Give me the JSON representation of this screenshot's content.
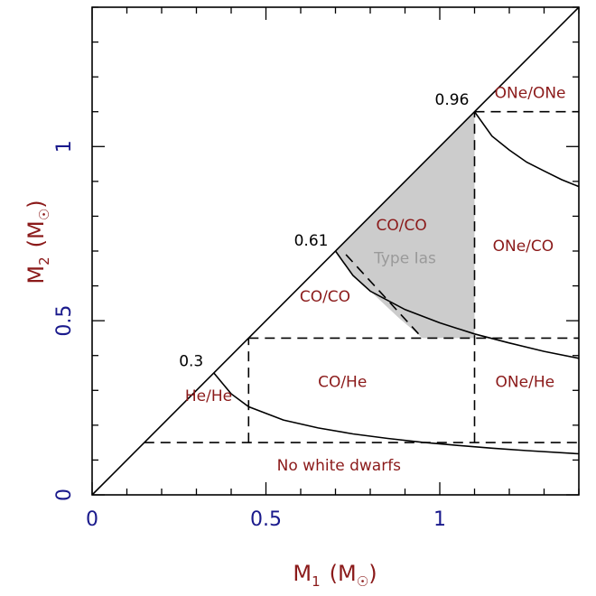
{
  "chart_data": {
    "type": "line",
    "title": "",
    "xlabel": {
      "main": "M",
      "sub": "1",
      "unit_open": "(M",
      "unit_close": ")"
    },
    "ylabel": {
      "main": "M",
      "sub": "2",
      "unit_open": "(M",
      "unit_close": ")"
    },
    "xlim": [
      0,
      1.4
    ],
    "ylim": [
      0,
      1.4
    ],
    "x_ticks": [
      {
        "value": 0,
        "label": "0"
      },
      {
        "value": 0.5,
        "label": "0.5"
      },
      {
        "value": 1,
        "label": "1"
      }
    ],
    "y_ticks": [
      {
        "value": 0,
        "label": "0"
      },
      {
        "value": 0.5,
        "label": "0.5"
      },
      {
        "value": 1,
        "label": "1"
      }
    ],
    "diagonal": [
      [
        0,
        0
      ],
      [
        1.4,
        1.4
      ]
    ],
    "boundary_curves": [
      {
        "name": "boundary-0.3",
        "points": [
          [
            0.35,
            0.35
          ],
          [
            0.4,
            0.29
          ],
          [
            0.45,
            0.253
          ],
          [
            0.55,
            0.215
          ],
          [
            0.65,
            0.192
          ],
          [
            0.75,
            0.175
          ],
          [
            0.85,
            0.162
          ],
          [
            0.95,
            0.151
          ],
          [
            1.05,
            0.142
          ],
          [
            1.15,
            0.134
          ],
          [
            1.25,
            0.127
          ],
          [
            1.4,
            0.118
          ]
        ]
      },
      {
        "name": "boundary-0.61",
        "points": [
          [
            0.7,
            0.7
          ],
          [
            0.75,
            0.63
          ],
          [
            0.8,
            0.585
          ],
          [
            0.9,
            0.532
          ],
          [
            1.0,
            0.494
          ],
          [
            1.1,
            0.462
          ],
          [
            1.2,
            0.436
          ],
          [
            1.3,
            0.412
          ],
          [
            1.4,
            0.392
          ]
        ]
      },
      {
        "name": "boundary-0.96",
        "points": [
          [
            1.1,
            1.1
          ],
          [
            1.15,
            1.03
          ],
          [
            1.2,
            0.99
          ],
          [
            1.25,
            0.955
          ],
          [
            1.3,
            0.93
          ],
          [
            1.35,
            0.905
          ],
          [
            1.4,
            0.885
          ]
        ]
      }
    ],
    "dashed_lines": [
      {
        "name": "he-limit-horizontal",
        "points": [
          [
            0.15,
            0.15
          ],
          [
            1.4,
            0.15
          ]
        ]
      },
      {
        "name": "he-limit-vertical",
        "points": [
          [
            0.45,
            0.15
          ],
          [
            0.45,
            0.45
          ]
        ]
      },
      {
        "name": "co-limit-horizontal",
        "points": [
          [
            0.45,
            0.45
          ],
          [
            1.4,
            0.45
          ]
        ]
      },
      {
        "name": "one-limit-vertical",
        "points": [
          [
            1.1,
            0.15
          ],
          [
            1.1,
            1.1
          ]
        ]
      },
      {
        "name": "one-limit-horizontal",
        "points": [
          [
            1.1,
            1.1
          ],
          [
            1.4,
            1.1
          ]
        ]
      },
      {
        "name": "type-ia-diagonal",
        "points": [
          [
            0.73,
            0.69
          ],
          [
            0.95,
            0.45
          ]
        ]
      }
    ],
    "shaded_region": {
      "name": "type-ias-region",
      "color": "#cccccc",
      "points": [
        [
          0.7,
          0.7
        ],
        [
          1.1,
          1.1
        ],
        [
          1.1,
          0.45
        ],
        [
          0.95,
          0.45
        ],
        [
          0.88,
          0.51
        ],
        [
          0.8,
          0.585
        ],
        [
          0.75,
          0.63
        ]
      ]
    },
    "region_labels": [
      {
        "name": "label-he-he",
        "text": "He/He",
        "x": 0.335,
        "y": 0.27
      },
      {
        "name": "label-co-he",
        "text": "CO/He",
        "x": 0.72,
        "y": 0.31
      },
      {
        "name": "label-co-co-lower",
        "text": "CO/CO",
        "x": 0.67,
        "y": 0.555
      },
      {
        "name": "label-co-co-upper",
        "text": "CO/CO",
        "x": 0.89,
        "y": 0.76
      },
      {
        "name": "label-one-co",
        "text": "ONe/CO",
        "x": 1.24,
        "y": 0.7
      },
      {
        "name": "label-one-he",
        "text": "ONe/He",
        "x": 1.245,
        "y": 0.31
      },
      {
        "name": "label-one-one",
        "text": "ONe/ONe",
        "x": 1.26,
        "y": 1.14
      },
      {
        "name": "label-no-white-dwarfs",
        "text": "No white dwarfs",
        "x": 0.71,
        "y": 0.07
      }
    ],
    "type_label": {
      "text": "Type Ias",
      "x": 0.9,
      "y": 0.665
    },
    "mass_labels": [
      {
        "name": "mass-0.3",
        "text": "0.3",
        "x": 0.285,
        "y": 0.37
      },
      {
        "name": "mass-0.61",
        "text": "0.61",
        "x": 0.63,
        "y": 0.715
      },
      {
        "name": "mass-0.96",
        "text": "0.96",
        "x": 1.035,
        "y": 1.12
      }
    ],
    "colors": {
      "axis_numbers": "#1a1a8c",
      "labels": "#8b1a1a",
      "type_label": "#9a9a9a",
      "shade": "#cccccc",
      "lines": "#000000"
    }
  }
}
